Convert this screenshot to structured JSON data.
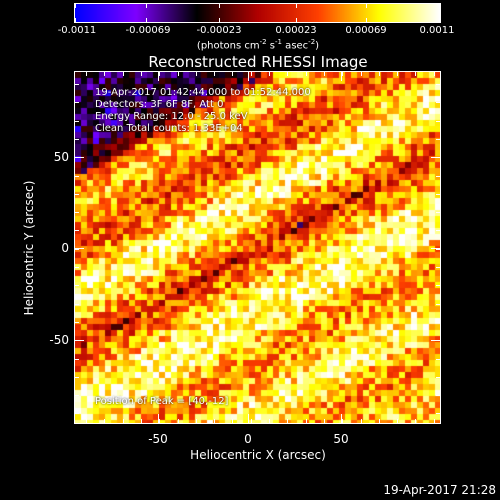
{
  "colorbar": {
    "ticks": [
      "-0.0011",
      "-0.00069",
      "-0.00023",
      "0.00023",
      "0.00069",
      "0.0011"
    ],
    "unit_pre": "(photons cm",
    "unit_exp1": "-2",
    "unit_mid": " s",
    "unit_exp2": "-1",
    "unit_mid2": " asec",
    "unit_exp3": "-2",
    "unit_post": ")",
    "colors": [
      "#0000ff",
      "#7f00ff",
      "#000000",
      "#b00000",
      "#ff4000",
      "#ffff00",
      "#ffffff"
    ]
  },
  "image": {
    "title": "Reconstructed RHESSI Image",
    "info_lines": [
      "19-Apr-2017 01:42:44.000 to 01:52:44.000",
      "Detectors: 3F 6F 8F, Att 0",
      "Energy Range: 12.0 - 25.0 keV",
      "Clean     Total counts: 1.33E+04"
    ],
    "peak_label": "Position of Peak = [40,-12]"
  },
  "axes": {
    "xlabel": "Heliocentric X (arcsec)",
    "ylabel": "Heliocentric Y (arcsec)",
    "xticks": [
      "-50",
      "0",
      "50"
    ],
    "yticks": [
      "50",
      "0",
      "-50"
    ]
  },
  "footer": {
    "timestamp": "19-Apr-2017 21:28"
  }
}
